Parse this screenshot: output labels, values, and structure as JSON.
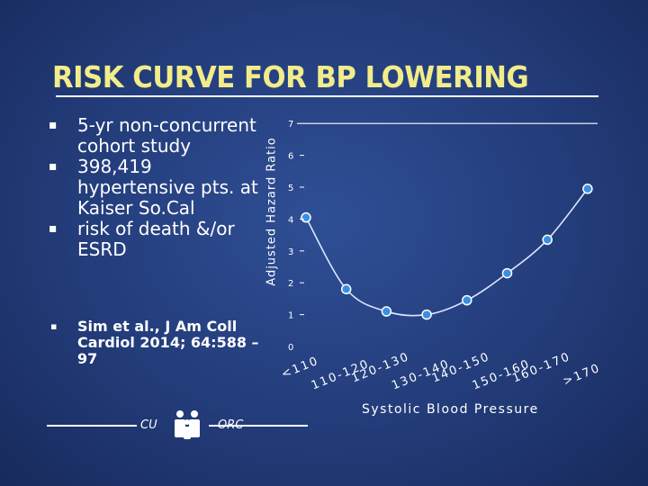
{
  "title": "RISK CURVE FOR BP LOWERING",
  "bullets": [
    "5-yr non-concurrent cohort study",
    "398,419 hypertensive pts. at Kaiser So.Cal",
    "risk of death &/or ESRD"
  ],
  "bullet_mark": "▪",
  "citation": "Sim et al., J Am Coll Cardiol 2014; 64:588 –97",
  "logo": {
    "left_text": "CU",
    "right_text": "ORC"
  },
  "colors": {
    "title": "#f2ec8a",
    "point": "#3a8fe0",
    "curve": "#dbe7ff",
    "background": "#233c7a"
  },
  "chart_data": {
    "type": "line",
    "title": "",
    "xlabel": "Systolic Blood Pressure",
    "ylabel": "Adjusted Hazard Ratio",
    "categories": [
      "<110",
      "110-120",
      "120-130",
      "130-140",
      "140-150",
      "150-160",
      "160-170",
      ">170"
    ],
    "series": [
      {
        "values": [
          4.05,
          1.8,
          1.1,
          1.0,
          1.45,
          2.3,
          3.35,
          4.95
        ]
      }
    ],
    "ylim": [
      0,
      7
    ],
    "yticks": [
      0,
      1,
      2,
      3,
      4,
      5,
      6,
      7
    ],
    "grid": false,
    "smooth": true
  }
}
